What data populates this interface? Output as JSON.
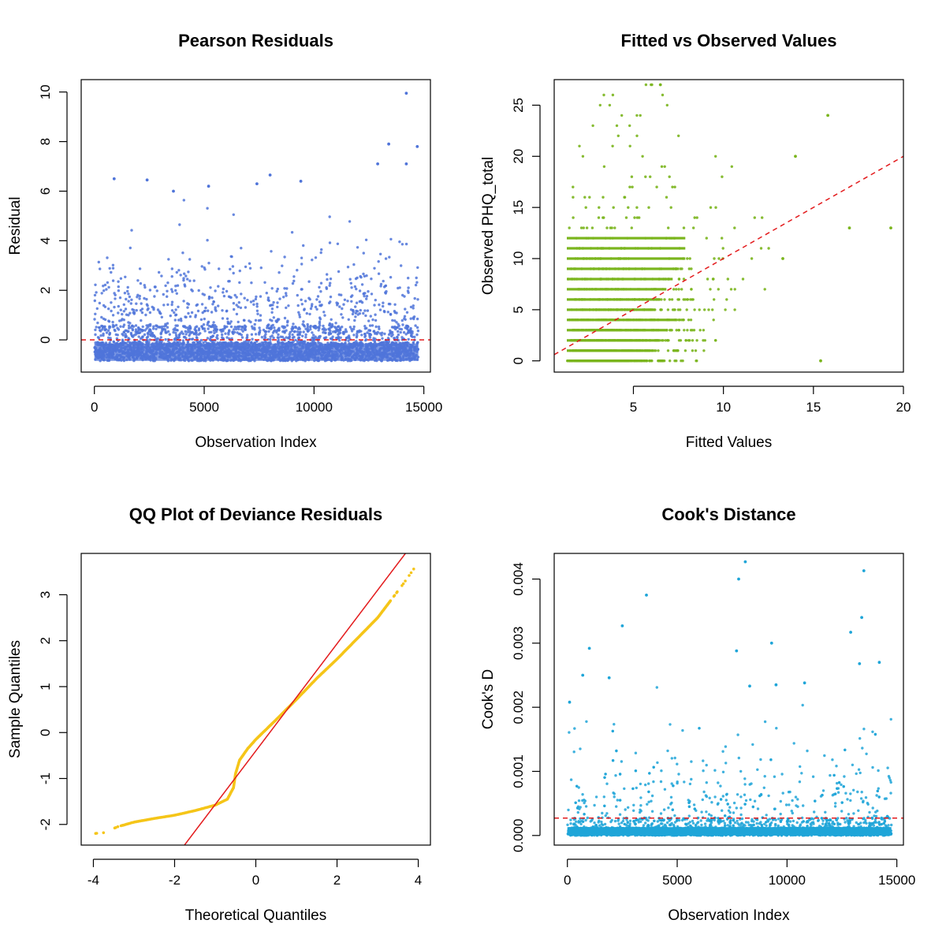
{
  "chart_data": [
    {
      "type": "scatter",
      "title": "Pearson Residuals",
      "xlabel": "Observation Index",
      "ylabel": "Residual",
      "xlim": [
        -600,
        15300
      ],
      "ylim": [
        -1.3,
        10.5
      ],
      "xticks": [
        0,
        5000,
        10000,
        15000
      ],
      "xtick_labels": [
        "0",
        "5000",
        "10000",
        "15000"
      ],
      "yticks": [
        0,
        2,
        4,
        6,
        8,
        10
      ],
      "ytick_labels": [
        "0",
        "2",
        "4",
        "6",
        "8",
        "10"
      ],
      "point_color": "#4f74d9",
      "n_points": 14750,
      "reference_line": {
        "type": "horizontal",
        "y": 0,
        "color": "#e31a1c",
        "style": "dashed"
      },
      "highlighted_points": [
        {
          "x": 900,
          "y": 6.5
        },
        {
          "x": 2400,
          "y": 6.45
        },
        {
          "x": 3600,
          "y": 6.0
        },
        {
          "x": 5200,
          "y": 6.2
        },
        {
          "x": 7400,
          "y": 6.3
        },
        {
          "x": 8000,
          "y": 6.65
        },
        {
          "x": 9400,
          "y": 6.4
        },
        {
          "x": 13400,
          "y": 7.9
        },
        {
          "x": 12900,
          "y": 7.1
        },
        {
          "x": 14200,
          "y": 9.95
        },
        {
          "x": 14700,
          "y": 7.8
        },
        {
          "x": 14200,
          "y": 7.1
        }
      ],
      "grid": false
    },
    {
      "type": "scatter",
      "title": "Fitted vs Observed Values",
      "xlabel": "Fitted Values",
      "ylabel": "Observed PHQ_total",
      "xlim": [
        0.6,
        20
      ],
      "ylim": [
        -1.1,
        27.5
      ],
      "xticks": [
        5,
        10,
        15,
        20
      ],
      "xtick_labels": [
        "5",
        "10",
        "15",
        "20"
      ],
      "yticks": [
        0,
        5,
        10,
        15,
        20,
        25
      ],
      "ytick_labels": [
        "0",
        "5",
        "10",
        "15",
        "20",
        "25"
      ],
      "point_color": "#7ab51d",
      "observed_integer_range": [
        0,
        27
      ],
      "reference_line": {
        "type": "identity",
        "slope": 1,
        "intercept": 0,
        "color": "#e31a1c",
        "style": "dashed"
      },
      "highlighted_points": [
        {
          "x": 15.8,
          "y": 24
        },
        {
          "x": 17,
          "y": 13
        },
        {
          "x": 19.3,
          "y": 13
        },
        {
          "x": 15.4,
          "y": 0
        },
        {
          "x": 14,
          "y": 20
        },
        {
          "x": 13.3,
          "y": 10
        },
        {
          "x": 6.5,
          "y": 27
        }
      ],
      "grid": false
    },
    {
      "type": "scatter",
      "title": "QQ Plot of Deviance Residuals",
      "xlabel": "Theoretical Quantiles",
      "ylabel": "Sample Quantiles",
      "xlim": [
        -4.3,
        4.3
      ],
      "ylim": [
        -2.45,
        3.9
      ],
      "xticks": [
        -4,
        -2,
        0,
        2,
        4
      ],
      "xtick_labels": [
        "-4",
        "-2",
        "0",
        "2",
        "4"
      ],
      "yticks": [
        -2,
        -1,
        0,
        1,
        2,
        3
      ],
      "ytick_labels": [
        "-2",
        "-1",
        "0",
        "1",
        "2",
        "3"
      ],
      "point_color": "#f5c518",
      "reference_line": {
        "type": "qqline",
        "slope": 1.167,
        "intercept": -0.4,
        "color": "#e31a1c",
        "style": "solid"
      },
      "quantile_curve": [
        {
          "x": -4.0,
          "y": -2.2
        },
        {
          "x": -3.75,
          "y": -2.18
        },
        {
          "x": -3.4,
          "y": -2.05
        },
        {
          "x": -3.0,
          "y": -1.95
        },
        {
          "x": -2.5,
          "y": -1.87
        },
        {
          "x": -2.0,
          "y": -1.8
        },
        {
          "x": -1.5,
          "y": -1.7
        },
        {
          "x": -1.0,
          "y": -1.58
        },
        {
          "x": -0.7,
          "y": -1.45
        },
        {
          "x": -0.55,
          "y": -1.2
        },
        {
          "x": -0.5,
          "y": -0.9
        },
        {
          "x": -0.4,
          "y": -0.6
        },
        {
          "x": -0.2,
          "y": -0.35
        },
        {
          "x": 0.0,
          "y": -0.15
        },
        {
          "x": 0.5,
          "y": 0.28
        },
        {
          "x": 1.0,
          "y": 0.72
        },
        {
          "x": 1.5,
          "y": 1.18
        },
        {
          "x": 2.0,
          "y": 1.6
        },
        {
          "x": 2.5,
          "y": 2.05
        },
        {
          "x": 3.0,
          "y": 2.5
        },
        {
          "x": 3.3,
          "y": 2.85
        },
        {
          "x": 3.6,
          "y": 3.2
        },
        {
          "x": 4.0,
          "y": 3.7
        }
      ],
      "grid": false
    },
    {
      "type": "scatter",
      "title": "Cook's Distance",
      "xlabel": "Observation Index",
      "ylabel": "Cook's D",
      "xlim": [
        -600,
        15300
      ],
      "ylim": [
        -0.00015,
        0.0044
      ],
      "xticks": [
        0,
        5000,
        10000,
        15000
      ],
      "xtick_labels": [
        "0",
        "5000",
        "10000",
        "15000"
      ],
      "yticks": [
        0.0,
        0.001,
        0.002,
        0.003,
        0.004
      ],
      "ytick_labels": [
        "0.000",
        "0.001",
        "0.002",
        "0.003",
        "0.004"
      ],
      "point_color": "#1ea5d8",
      "n_points": 14750,
      "reference_line": {
        "type": "horizontal",
        "y": 0.00027,
        "color": "#e31a1c",
        "style": "dashed"
      },
      "highlighted_points": [
        {
          "x": 8100,
          "y": 0.00427
        },
        {
          "x": 7800,
          "y": 0.004
        },
        {
          "x": 13500,
          "y": 0.00413
        },
        {
          "x": 3600,
          "y": 0.00375
        },
        {
          "x": 13400,
          "y": 0.0034
        },
        {
          "x": 2500,
          "y": 0.00327
        },
        {
          "x": 12900,
          "y": 0.00317
        },
        {
          "x": 9300,
          "y": 0.003
        },
        {
          "x": 1000,
          "y": 0.00292
        },
        {
          "x": 7700,
          "y": 0.00288
        },
        {
          "x": 14200,
          "y": 0.0027
        },
        {
          "x": 13300,
          "y": 0.00268
        },
        {
          "x": 700,
          "y": 0.0025
        },
        {
          "x": 1900,
          "y": 0.00246
        },
        {
          "x": 10800,
          "y": 0.00238
        },
        {
          "x": 9500,
          "y": 0.00235
        },
        {
          "x": 8300,
          "y": 0.00233
        },
        {
          "x": 100,
          "y": 0.00208
        }
      ],
      "grid": false
    }
  ]
}
